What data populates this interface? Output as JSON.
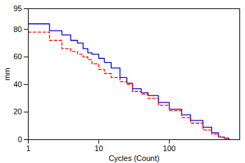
{
  "chart_data": {
    "type": "line",
    "x_label": "Cycles (Count)",
    "y_label": "mm",
    "log": "x",
    "grid": false,
    "xlim": [
      1,
      1000
    ],
    "xticks": [
      1,
      10,
      100
    ],
    "ylim": [
      0,
      95
    ],
    "yticks": [
      0,
      20,
      40,
      60,
      80,
      95
    ],
    "x": [
      1,
      2,
      3,
      4,
      5,
      6,
      7,
      8,
      10,
      12,
      15,
      20,
      25,
      30,
      40,
      50,
      70,
      100,
      150,
      200,
      300,
      400,
      500,
      600,
      700
    ],
    "series": [
      {
        "color": "#0000cc",
        "line_style": "solid",
        "values": [
          84,
          79,
          76,
          72,
          70,
          66,
          63,
          62,
          59,
          56,
          52,
          45,
          41,
          37,
          34,
          32,
          27,
          22,
          18,
          14,
          9,
          5,
          2,
          1,
          0
        ]
      },
      {
        "color": "#ff0000",
        "line_style": "dashed",
        "values": [
          78,
          72,
          66,
          64,
          62,
          60,
          58,
          55,
          51,
          48,
          45,
          42,
          40,
          35,
          33,
          30,
          25,
          21,
          16,
          12,
          7,
          4,
          2,
          1,
          0
        ]
      }
    ]
  }
}
